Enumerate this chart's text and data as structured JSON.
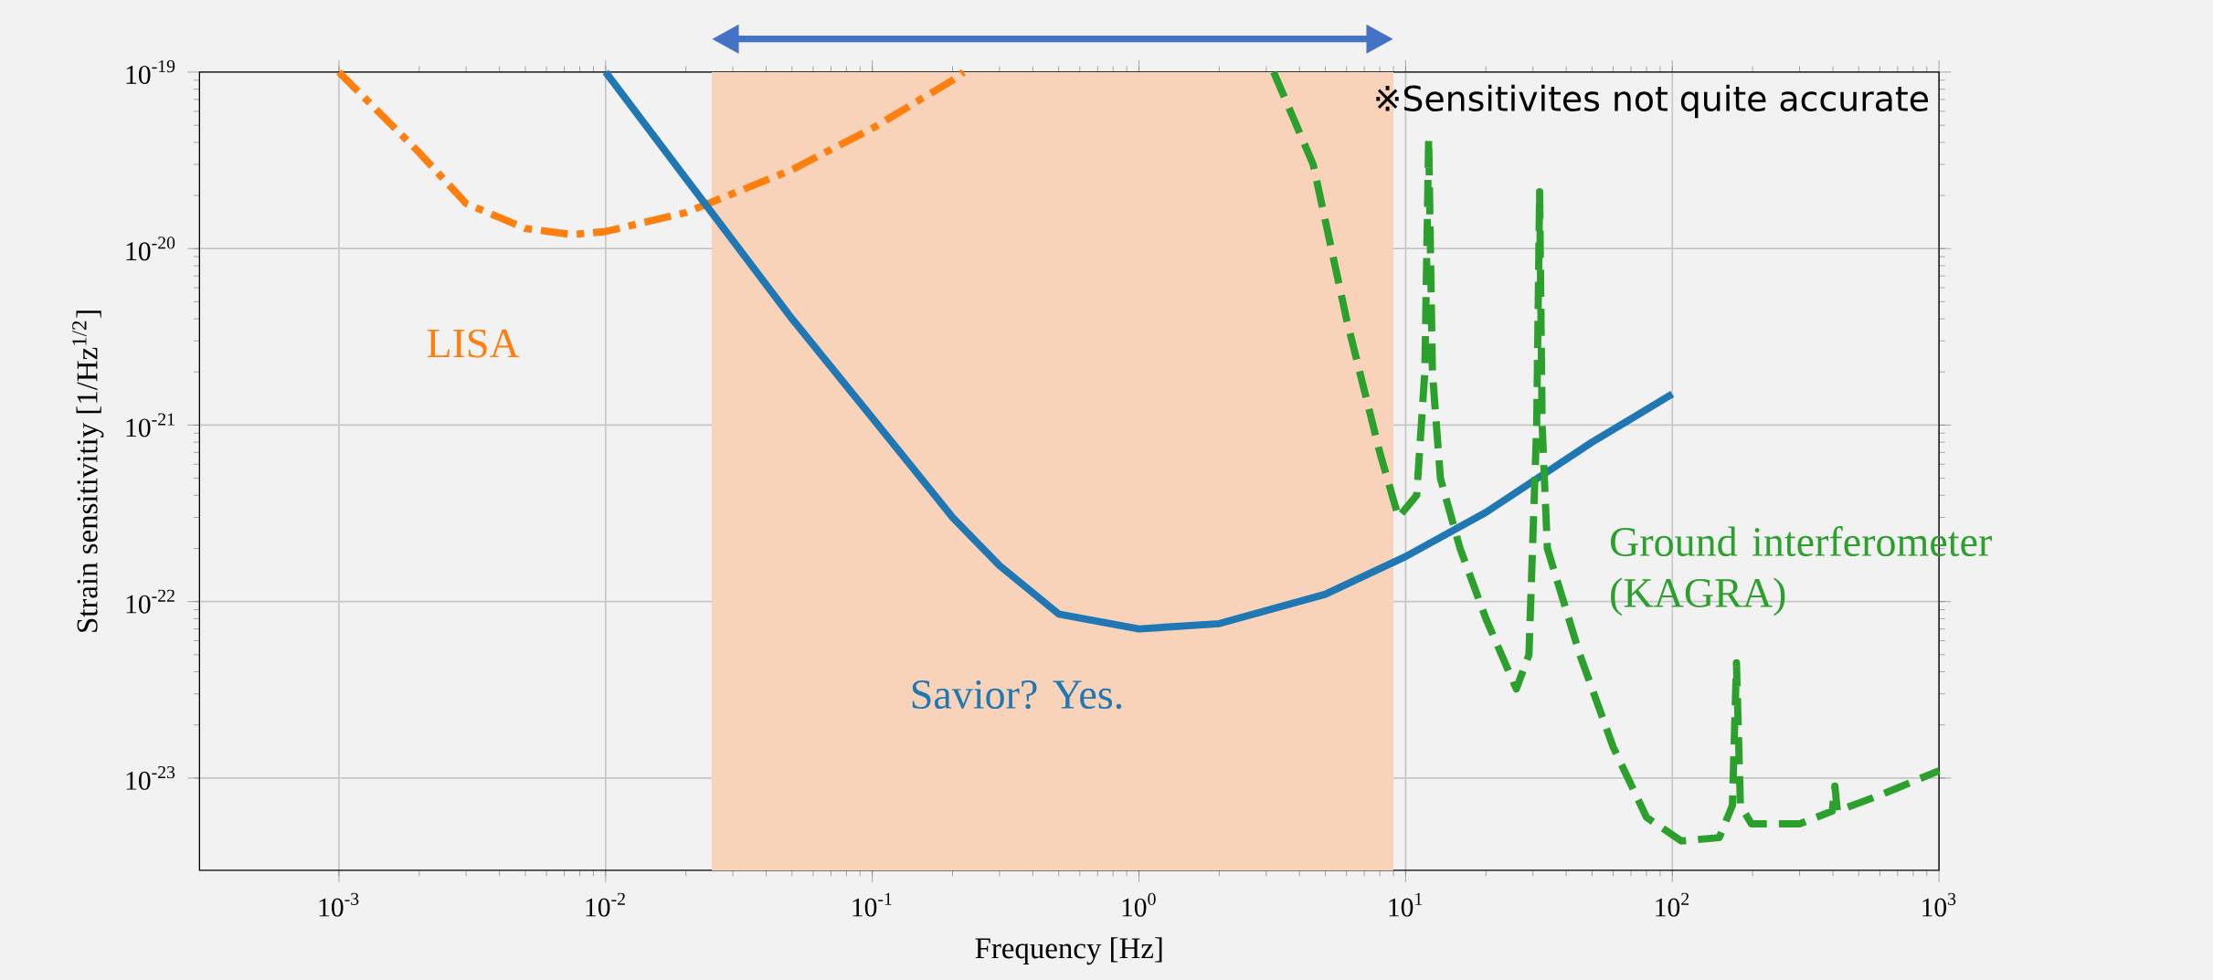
{
  "chart_data": {
    "type": "line",
    "xlabel": "Frequency [Hz]",
    "ylabel": "Strain sensitivitiy [1/Hz$^{1/2}$]",
    "log": "xy",
    "grid": true,
    "marker": "none",
    "xlim": [
      0.0003,
      1000
    ],
    "ylim": [
      3e-24,
      1e-19
    ],
    "xticks": [
      {
        "value": 0.001,
        "label": "10$^{-3}$"
      },
      {
        "value": 0.01,
        "label": "10$^{-2}$"
      },
      {
        "value": 0.1,
        "label": "10$^{-1}$"
      },
      {
        "value": 1,
        "label": "10$^{0}$"
      },
      {
        "value": 10,
        "label": "10$^{1}$"
      },
      {
        "value": 100,
        "label": "10$^{2}$"
      },
      {
        "value": 1000,
        "label": "10$^{3}$"
      }
    ],
    "yticks": [
      {
        "value": 1e-23,
        "label": "10$^{-23}$"
      },
      {
        "value": 1e-22,
        "label": "10$^{-22}$"
      },
      {
        "value": 1e-21,
        "label": "10$^{-21}$"
      },
      {
        "value": 1e-20,
        "label": "10$^{-20}$"
      },
      {
        "value": 1e-19,
        "label": "10$^{-19}$"
      }
    ],
    "series": [
      {
        "name": "LISA",
        "color": "#ff7f0e",
        "line_style": "dashdot",
        "x": [
          0.001,
          0.002,
          0.003,
          0.005,
          0.0075,
          0.01,
          0.02,
          0.05,
          0.1,
          0.2,
          0.22
        ],
        "values": [
          1e-19,
          3.5e-20,
          1.8e-20,
          1.3e-20,
          1.2e-20,
          1.25e-20,
          1.6e-20,
          2.8e-20,
          4.8e-20,
          9e-20,
          1e-19
        ]
      },
      {
        "name": "Savior? Yes.",
        "color": "#1f77b4",
        "line_style": "solid",
        "x": [
          0.01,
          0.02,
          0.05,
          0.1,
          0.2,
          0.3,
          0.5,
          1,
          2,
          5,
          10,
          20,
          50,
          100
        ],
        "values": [
          1e-19,
          2.5e-20,
          4e-21,
          1.1e-21,
          3e-22,
          1.6e-22,
          8.5e-23,
          7e-23,
          7.5e-23,
          1.1e-22,
          1.8e-22,
          3.2e-22,
          8e-22,
          1.5e-21
        ]
      },
      {
        "name": "Ground interferometer (KAGRA)",
        "color": "#2ca02c",
        "line_style": "dashed",
        "x": [
          3.2,
          4.5,
          6,
          8,
          9.4,
          11,
          11.8,
          12.2,
          12.6,
          13.5,
          16,
          20,
          26,
          29,
          31,
          31.8,
          32.5,
          34,
          45,
          60,
          80,
          108,
          150,
          168,
          174,
          180,
          198,
          300,
          398,
          407,
          416,
          600,
          1000
        ],
        "values": [
          1e-19,
          3e-20,
          4e-21,
          7e-22,
          3e-22,
          4e-22,
          2e-21,
          4.2e-20,
          2e-21,
          5e-22,
          2e-22,
          8e-23,
          3.2e-23,
          5e-23,
          1e-21,
          2.1e-20,
          1e-21,
          2e-22,
          5e-23,
          1.5e-23,
          6e-24,
          4.4e-24,
          4.6e-24,
          7e-24,
          4.5e-23,
          7e-24,
          5.5e-24,
          5.5e-24,
          6.5e-24,
          9e-24,
          6.5e-24,
          8e-24,
          1.1e-23
        ]
      }
    ],
    "bands": [
      {
        "axis": "x",
        "from": 0.025,
        "to": 9,
        "color": "#f8d3ba"
      }
    ],
    "annotations": [
      "※Sensitivites not quite accurate"
    ]
  }
}
